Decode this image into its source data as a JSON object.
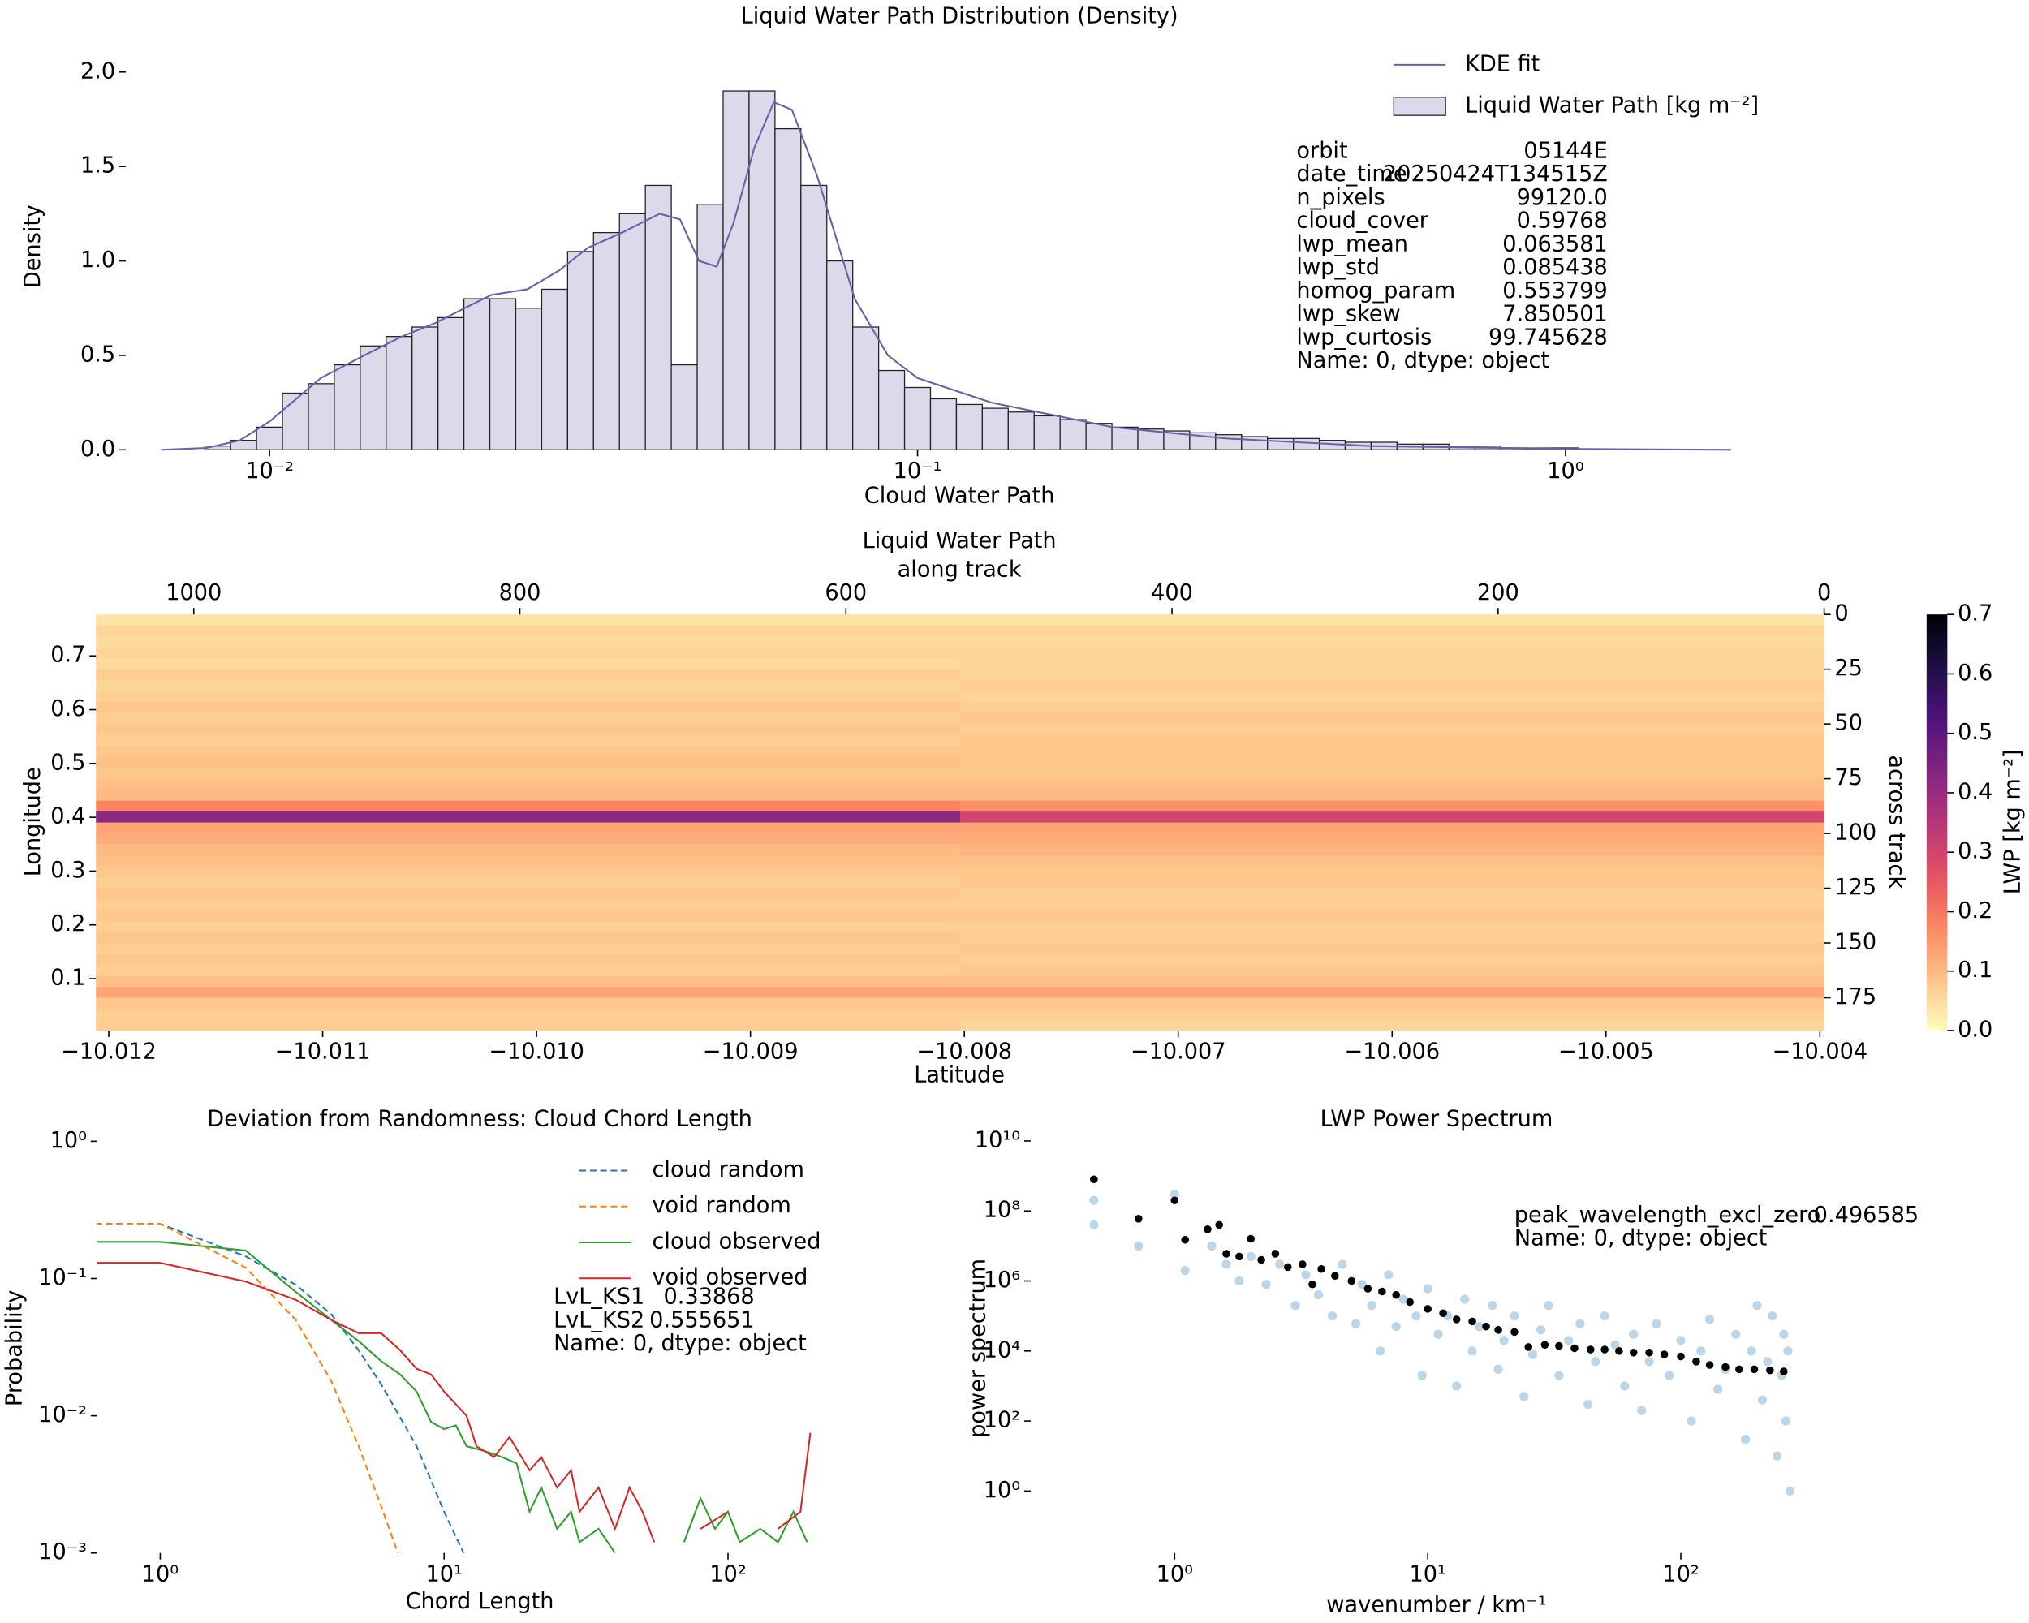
{
  "chart_data": [
    {
      "type": "histogram",
      "title": "Liquid Water Path Distribution (Density)",
      "xlabel": "Cloud Water Path",
      "ylabel": "Density",
      "xscale": "log",
      "name": "Liquid Water Path [kg m⁻²]",
      "color": "#dadaeb",
      "bins": [
        0.007244,
        0.007943,
        0.00871,
        0.00955,
        0.010471,
        0.011482,
        0.012589,
        0.013804,
        0.015136,
        0.016596,
        0.018197,
        0.019953,
        0.021878,
        0.023988,
        0.026303,
        0.02884,
        0.031623,
        0.034674,
        0.038019,
        0.041687,
        0.045709,
        0.050119,
        0.054954,
        0.060256,
        0.066069,
        0.072444,
        0.079433,
        0.087096,
        0.095499,
        0.10471,
        0.11482,
        0.12589,
        0.13804,
        0.15136,
        0.16596,
        0.18197,
        0.19953,
        0.21878,
        0.23988,
        0.26303,
        0.2884,
        0.31623,
        0.34674,
        0.38019,
        0.41687,
        0.45709,
        0.50119,
        0.54954,
        0.60256,
        0.66069,
        0.72444,
        0.79433,
        0.87096,
        0.95499,
        1.0471,
        1.1482,
        1.2589
      ],
      "values": [
        0.0,
        0.02,
        0.05,
        0.12,
        0.3,
        0.35,
        0.45,
        0.55,
        0.6,
        0.65,
        0.7,
        0.8,
        0.8,
        0.75,
        0.85,
        1.05,
        1.15,
        1.25,
        1.4,
        0.45,
        1.3,
        1.9,
        1.9,
        1.7,
        1.4,
        1.0,
        0.65,
        0.42,
        0.33,
        0.27,
        0.24,
        0.22,
        0.2,
        0.18,
        0.16,
        0.14,
        0.12,
        0.11,
        0.1,
        0.09,
        0.08,
        0.07,
        0.06,
        0.06,
        0.05,
        0.04,
        0.04,
        0.03,
        0.03,
        0.02,
        0.02,
        0.01,
        0.01,
        0.01,
        0.005,
        0.003
      ],
      "line": {
        "name": "KDE fit",
        "color": "#6a5fa8",
        "x": [
          0.0068,
          0.008,
          0.009,
          0.01,
          0.011,
          0.012,
          0.014,
          0.016,
          0.018,
          0.02,
          0.022,
          0.025,
          0.028,
          0.031,
          0.035,
          0.04,
          0.043,
          0.046,
          0.049,
          0.052,
          0.056,
          0.06,
          0.064,
          0.07,
          0.08,
          0.09,
          0.1,
          0.13,
          0.2,
          0.3,
          0.5,
          1.0,
          1.8
        ],
        "values": [
          0,
          0.01,
          0.05,
          0.15,
          0.27,
          0.38,
          0.5,
          0.6,
          0.67,
          0.75,
          0.82,
          0.85,
          0.95,
          1.07,
          1.15,
          1.25,
          1.22,
          1.0,
          0.97,
          1.2,
          1.6,
          1.84,
          1.8,
          1.45,
          0.8,
          0.5,
          0.38,
          0.25,
          0.12,
          0.06,
          0.02,
          0.005,
          0
        ]
      },
      "xlim": [
        0.006,
        2.0
      ],
      "ylim": [
        0,
        2.1
      ],
      "xticks": [
        {
          "value": 0.01,
          "label": "10⁻²"
        },
        {
          "value": 0.1,
          "label": "10⁻¹"
        },
        {
          "value": 1,
          "label": "10⁰"
        }
      ],
      "yticks": [
        {
          "value": 0,
          "label": "0.0"
        },
        0.5,
        {
          "value": 1,
          "label": "1.0"
        },
        1.5,
        {
          "value": 2,
          "label": "2.0"
        }
      ],
      "legend": "upper right",
      "text_box": {
        "rows": [
          [
            "orbit",
            "05144E"
          ],
          [
            "date_time",
            "20250424T134515Z"
          ],
          [
            "n_pixels",
            "99120.0"
          ],
          [
            "cloud_cover",
            "0.59768"
          ],
          [
            "lwp_mean",
            "0.063581"
          ],
          [
            "lwp_std",
            "0.085438"
          ],
          [
            "homog_param",
            "0.553799"
          ],
          [
            "lwp_skew",
            "7.850501"
          ],
          [
            "lwp_curtosis",
            "99.745628"
          ]
        ],
        "footer": "Name: 0, dtype: object"
      }
    },
    {
      "type": "heatmap",
      "title": "Liquid Water Path",
      "xlabel": "Latitude",
      "ylabel": "Longitude",
      "x2label": "along track",
      "y2label": "across track",
      "xlim": [
        -10.01206,
        -10.00398
      ],
      "xticks": [
        {
          "value": -10.012,
          "label": "−10.012"
        },
        {
          "value": -10.011,
          "label": "−10.011"
        },
        {
          "value": -10.01,
          "label": "−10.010"
        },
        {
          "value": -10.009,
          "label": "−10.009"
        },
        {
          "value": -10.008,
          "label": "−10.008"
        },
        {
          "value": -10.007,
          "label": "−10.007"
        },
        {
          "value": -10.006,
          "label": "−10.006"
        },
        {
          "value": -10.005,
          "label": "−10.005"
        },
        {
          "value": -10.004,
          "label": "−10.004"
        }
      ],
      "ylim": [
        0.0036,
        0.777
      ],
      "yticks": [
        0.1,
        0.2,
        0.3,
        0.4,
        0.5,
        0.6,
        0.7
      ],
      "x2lim": [
        1060,
        0
      ],
      "x2ticks": [
        1000,
        800,
        600,
        400,
        200,
        0
      ],
      "y2lim": [
        190,
        0
      ],
      "y2ticks": [
        0,
        25,
        50,
        75,
        100,
        125,
        150,
        175
      ],
      "x_edges": [
        1060,
        530,
        0
      ],
      "y_edges": [
        0,
        5,
        10,
        15,
        20,
        25,
        30,
        35,
        40,
        45,
        50,
        55,
        60,
        65,
        70,
        75,
        80,
        85,
        90,
        95,
        100,
        105,
        110,
        115,
        120,
        125,
        130,
        135,
        140,
        145,
        150,
        155,
        160,
        165,
        170,
        175,
        180,
        185,
        190
      ],
      "z": [
        [
          0.04,
          0.04
        ],
        [
          0.06,
          0.06
        ],
        [
          0.05,
          0.05
        ],
        [
          0.06,
          0.06
        ],
        [
          0.05,
          0.06
        ],
        [
          0.07,
          0.06
        ],
        [
          0.06,
          0.07
        ],
        [
          0.07,
          0.06
        ],
        [
          0.08,
          0.07
        ],
        [
          0.07,
          0.08
        ],
        [
          0.08,
          0.07
        ],
        [
          0.07,
          0.08
        ],
        [
          0.08,
          0.08
        ],
        [
          0.09,
          0.08
        ],
        [
          0.08,
          0.08
        ],
        [
          0.09,
          0.09
        ],
        [
          0.1,
          0.1
        ],
        [
          0.18,
          0.16
        ],
        [
          0.42,
          0.3
        ],
        [
          0.13,
          0.13
        ],
        [
          0.12,
          0.12
        ],
        [
          0.1,
          0.11
        ],
        [
          0.09,
          0.09
        ],
        [
          0.08,
          0.08
        ],
        [
          0.07,
          0.08
        ],
        [
          0.08,
          0.07
        ],
        [
          0.07,
          0.07
        ],
        [
          0.08,
          0.08
        ],
        [
          0.07,
          0.07
        ],
        [
          0.08,
          0.07
        ],
        [
          0.07,
          0.08
        ],
        [
          0.08,
          0.07
        ],
        [
          0.07,
          0.08
        ],
        [
          0.09,
          0.09
        ],
        [
          0.13,
          0.13
        ],
        [
          0.08,
          0.08
        ],
        [
          0.07,
          0.07
        ],
        [
          0.07,
          0.06
        ]
      ],
      "colormap": "magma_r",
      "colorbar": {
        "label": "LWP [kg m⁻²]",
        "lim": [
          0,
          0.7
        ],
        "ticks": [
          {
            "value": 0,
            "label": "0.0"
          },
          0.1,
          0.2,
          0.3,
          0.4,
          0.5,
          0.6,
          0.7
        ]
      }
    },
    {
      "type": "line",
      "title": "Deviation from Randomness: Cloud Chord Length",
      "xlabel": "Chord Length",
      "ylabel": "Probability",
      "xscale": "log",
      "yscale": "log",
      "xlim": [
        0.6,
        300
      ],
      "ylim": [
        0.001,
        1.2
      ],
      "xticks": [
        {
          "value": 1,
          "label": "10⁰"
        },
        {
          "value": 10,
          "label": "10¹"
        },
        {
          "value": 100,
          "label": "10²"
        }
      ],
      "yticks": [
        {
          "value": 0.001,
          "label": "10⁻³"
        },
        {
          "value": 0.01,
          "label": "10⁻²"
        },
        {
          "value": 0.1,
          "label": "10⁻¹"
        },
        {
          "value": 1,
          "label": "10⁰"
        }
      ],
      "legend": "upper right",
      "series": [
        {
          "name": "cloud random",
          "color": "#1f77b4",
          "linestyle": "dashed",
          "x": [
            0.5,
            1,
            2,
            3,
            4,
            5,
            6,
            8,
            10,
            12
          ],
          "values": [
            0.25,
            0.25,
            0.145,
            0.09,
            0.055,
            0.03,
            0.017,
            0.006,
            0.002,
            0.0009
          ]
        },
        {
          "name": "void random",
          "color": "#ff7f0e",
          "linestyle": "dashed",
          "x": [
            0.5,
            1,
            2,
            3,
            4,
            5,
            6,
            7
          ],
          "values": [
            0.25,
            0.25,
            0.12,
            0.05,
            0.018,
            0.006,
            0.0022,
            0.0009
          ]
        },
        {
          "name": "cloud observed",
          "color": "#2ca02c",
          "linestyle": "solid",
          "x": [
            0.5,
            1,
            2,
            3,
            4,
            5,
            6,
            7,
            8,
            9,
            10,
            11,
            12,
            14,
            16,
            18,
            20,
            22,
            25,
            28,
            30,
            35,
            40,
            45,
            60,
            70,
            80,
            90,
            100,
            110,
            130,
            150,
            170,
            190,
            200
          ],
          "values": [
            0.185,
            0.185,
            0.16,
            0.08,
            0.05,
            0.035,
            0.025,
            0.02,
            0.015,
            0.009,
            0.008,
            0.0085,
            0.006,
            0.0055,
            0.005,
            0.0045,
            0.002,
            0.003,
            0.0015,
            0.002,
            0.0012,
            0.0015,
            0.001,
            null,
            null,
            0.0012,
            0.0025,
            0.0015,
            0.002,
            0.0012,
            0.0015,
            0.0012,
            0.002,
            0.0012,
            null
          ]
        },
        {
          "name": "void observed",
          "color": "#d62728",
          "linestyle": "solid",
          "x": [
            0.5,
            1,
            2,
            3,
            4,
            5,
            6,
            7,
            8,
            9,
            10,
            12,
            13,
            15,
            17,
            20,
            22,
            25,
            28,
            30,
            35,
            40,
            45,
            50,
            55,
            60,
            80,
            100,
            120,
            150,
            180,
            195,
            200
          ],
          "values": [
            0.13,
            0.13,
            0.095,
            0.07,
            0.05,
            0.04,
            0.04,
            0.03,
            0.022,
            0.02,
            0.015,
            0.01,
            0.006,
            0.005,
            0.007,
            0.004,
            0.005,
            0.003,
            0.004,
            0.002,
            0.003,
            0.0015,
            0.003,
            0.002,
            0.0012,
            null,
            0.0015,
            0.002,
            null,
            0.0015,
            0.002,
            0.0075,
            null
          ]
        }
      ],
      "text_box": {
        "rows": [
          [
            "LvL_KS1",
            "0.33868"
          ],
          [
            "LvL_KS2",
            "0.555651"
          ]
        ],
        "footer": "Name: 0, dtype: object"
      }
    },
    {
      "type": "scatter",
      "title": "LWP Power Spectrum",
      "xlabel": "wavenumber / km⁻¹",
      "ylabel": "power spectrum",
      "xscale": "log",
      "yscale": "log",
      "xlim": [
        0.27,
        400
      ],
      "ylim": [
        0.017,
        20000000000
      ],
      "xticks": [
        {
          "value": 1,
          "label": "10⁰"
        },
        {
          "value": 10,
          "label": "10¹"
        },
        {
          "value": 100,
          "label": "10²"
        }
      ],
      "yticks": [
        {
          "value": 1,
          "label": "10⁰"
        },
        {
          "value": 100,
          "label": "10²"
        },
        {
          "value": 10000,
          "label": "10⁴"
        },
        {
          "value": 1000000,
          "label": "10⁶"
        },
        {
          "value": 100000000,
          "label": "10⁸"
        },
        {
          "value": 10000000000,
          "label": "10¹⁰"
        }
      ],
      "series": [
        {
          "color": "#1f77b4",
          "alpha": 0.3,
          "x": [
            0.48,
            0.48,
            0.72,
            1.0,
            1.1,
            1.4,
            1.6,
            1.8,
            2.0,
            2.3,
            2.6,
            3.0,
            3.3,
            3.7,
            4.2,
            4.6,
            5.2,
            5.5,
            6,
            6.5,
            7,
            7.5,
            8,
            9,
            9.5,
            10,
            11,
            12,
            13,
            14,
            15,
            16,
            18,
            19,
            20,
            22,
            24,
            26,
            28,
            30,
            33,
            36,
            40,
            43,
            46,
            50,
            55,
            60,
            65,
            70,
            75,
            80,
            90,
            100,
            110,
            120,
            130,
            140,
            150,
            165,
            180,
            190,
            200,
            210,
            220,
            230,
            240,
            250,
            255,
            260,
            265,
            270
          ],
          "values": [
            40000000,
            200000000,
            10000000,
            300000000,
            2000000,
            10000000,
            3000000,
            1000000,
            5000000,
            800000,
            3000000,
            200000,
            1500000,
            400000,
            100000,
            3000000,
            60000,
            800000,
            200000,
            10000,
            1500000,
            50000,
            300000,
            100000,
            2000,
            600000,
            30000,
            100000,
            1000,
            300000,
            10000,
            50000,
            200000,
            3000,
            20000,
            100000,
            500,
            8000,
            40000,
            200000,
            2000,
            20000,
            60000,
            300,
            5000,
            100000,
            15000,
            1000,
            30000,
            200,
            5000,
            60000,
            2000,
            20000,
            100,
            10000,
            80000,
            800,
            3000,
            30000,
            30,
            10000,
            200000,
            400,
            5000,
            100000,
            10,
            2000,
            30000,
            100,
            10000,
            1
          ]
        },
        {
          "color": "#000000",
          "alpha": 1,
          "x": [
            0.48,
            0.72,
            1.0,
            1.1,
            1.35,
            1.5,
            1.6,
            1.8,
            2.0,
            2.2,
            2.5,
            2.8,
            3.2,
            3.5,
            3.8,
            4.3,
            5,
            5.8,
            6.6,
            7.5,
            8.5,
            10,
            11.5,
            13,
            15,
            17,
            19,
            22,
            25,
            29,
            33,
            38,
            44,
            50,
            57,
            65,
            75,
            86,
            100,
            115,
            130,
            150,
            170,
            195,
            225,
            255
          ],
          "values": [
            800000000,
            60000000,
            200000000,
            15000000,
            30000000,
            40000000,
            6000000,
            5000000,
            16000000,
            4000000,
            6000000,
            2500000,
            3000000,
            800000,
            2200000,
            1400000,
            1000000,
            600000,
            500000,
            400000,
            250000,
            160000,
            120000,
            80000,
            70000,
            50000,
            40000,
            35000,
            13000,
            15000,
            14000,
            12000,
            11000,
            11000,
            10000,
            9000,
            9000,
            8000,
            7000,
            5000,
            4000,
            3500,
            3000,
            3000,
            2800,
            2600
          ]
        }
      ],
      "text_box": {
        "rows": [
          [
            "peak_wavelength_excl_zero",
            "0.496585"
          ]
        ],
        "footer": "Name: 0, dtype: object"
      }
    }
  ]
}
